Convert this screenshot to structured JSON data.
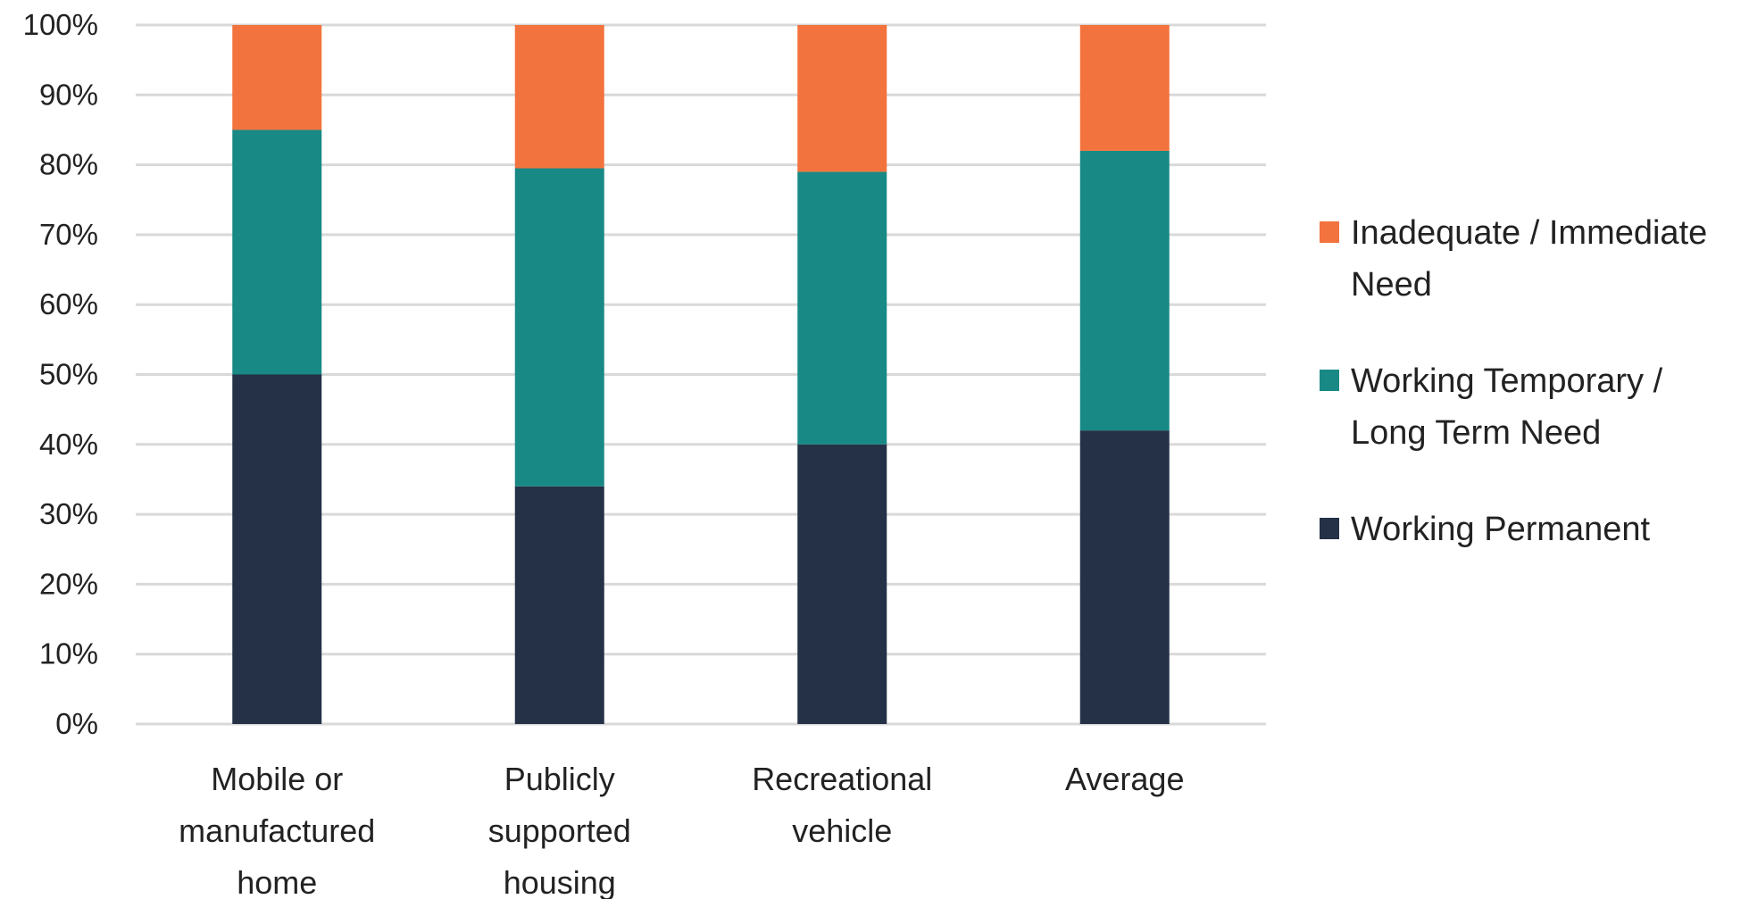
{
  "chart_data": {
    "type": "bar",
    "stacked": true,
    "percent": true,
    "title": "",
    "xlabel": "",
    "ylabel": "",
    "ylim": [
      0,
      100
    ],
    "yticks": [
      "0%",
      "10%",
      "20%",
      "30%",
      "40%",
      "50%",
      "60%",
      "70%",
      "80%",
      "90%",
      "100%"
    ],
    "categories": [
      [
        "Mobile or",
        "manufactured",
        "home"
      ],
      [
        "Publicly",
        "supported",
        "housing"
      ],
      [
        "Recreational",
        "vehicle"
      ],
      [
        "Average"
      ]
    ],
    "series": [
      {
        "name": "Working Permanent",
        "color": "#243147",
        "values": [
          50,
          34,
          40,
          42
        ]
      },
      {
        "name": "Working Temporary / Long Term Need",
        "color": "#188985",
        "values": [
          35,
          45.5,
          39,
          40
        ]
      },
      {
        "name": "Inadequate / Immediate Need",
        "color": "#f2733d",
        "values": [
          15,
          20.5,
          21,
          18
        ]
      }
    ],
    "legend": {
      "position": "right",
      "items": [
        {
          "lines": [
            "Inadequate / Immediate",
            "Need"
          ],
          "color": "#f2733d"
        },
        {
          "lines": [
            "Working Temporary /",
            "Long Term Need"
          ],
          "color": "#188985"
        },
        {
          "lines": [
            "Working Permanent"
          ],
          "color": "#243147"
        }
      ]
    },
    "grid": true
  }
}
